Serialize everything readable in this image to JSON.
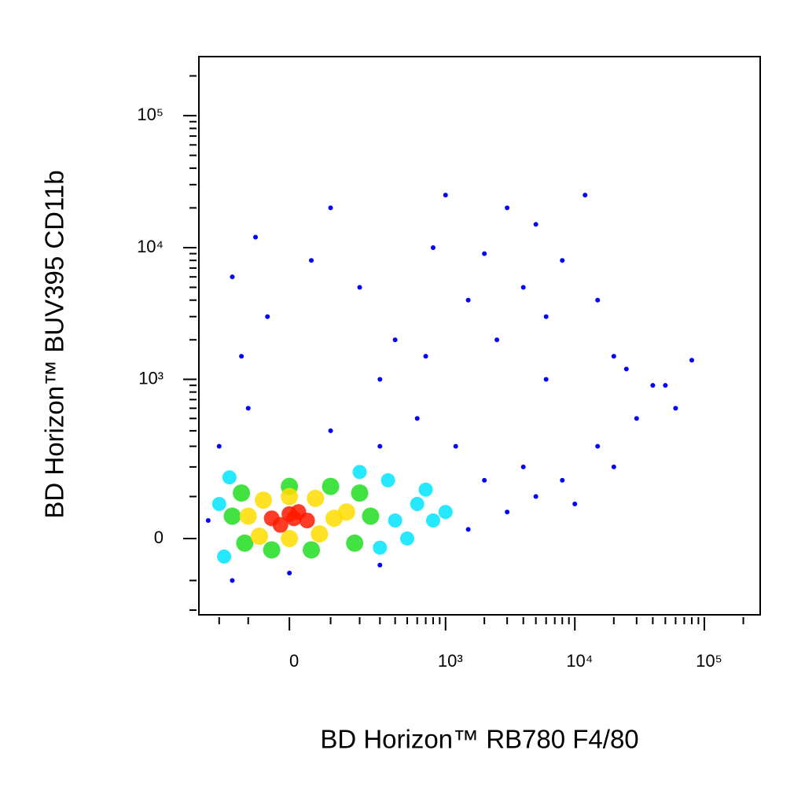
{
  "chart_data": {
    "type": "scatter",
    "xlabel": "BD Horizon™ RB780 F4/80",
    "ylabel": "BD Horizon™ BUV395 CD11b",
    "xscale": "asinh",
    "yscale": "asinh",
    "xlim": [
      -300,
      270000
    ],
    "ylim": [
      -220,
      280000
    ],
    "xticks": [
      0,
      {
        "value": 1000,
        "label": "10³"
      },
      {
        "value": 10000,
        "label": "10⁴"
      },
      {
        "value": 100000,
        "label": "10⁵"
      }
    ],
    "yticks": [
      0,
      {
        "value": 1000,
        "label": "10³"
      },
      {
        "value": 10000,
        "label": "10⁴"
      },
      {
        "value": 100000,
        "label": "10⁵"
      }
    ],
    "xminor_ticks": [
      -200,
      -100,
      100,
      200,
      300,
      400,
      500,
      600,
      700,
      800,
      900,
      2000,
      3000,
      4000,
      5000,
      6000,
      7000,
      8000,
      9000,
      20000,
      30000,
      40000,
      50000,
      60000,
      70000,
      80000,
      90000,
      200000
    ],
    "yminor_ticks": [
      -200,
      -100,
      100,
      200,
      300,
      400,
      500,
      600,
      700,
      800,
      900,
      2000,
      3000,
      4000,
      5000,
      6000,
      7000,
      8000,
      9000,
      20000,
      30000,
      40000,
      50000,
      60000,
      70000,
      80000,
      90000,
      200000
    ],
    "series": [
      {
        "color": "#0000ff",
        "x": [
          -150,
          -250,
          -200,
          0,
          300,
          1500,
          3000,
          5000,
          8000,
          15000,
          30000,
          50000,
          60000,
          20000,
          10000,
          4000,
          2000,
          1200,
          600,
          300,
          100,
          -100,
          -120,
          -50,
          50,
          200,
          400,
          800,
          1500,
          2500,
          4000,
          6000,
          8000,
          5000,
          3000,
          1000,
          100,
          -80,
          300,
          700,
          2000,
          6000,
          12000,
          15000,
          40000,
          25000,
          80000,
          -150,
          20000
        ],
        "y": [
          -100,
          40,
          300,
          -80,
          -60,
          20,
          60,
          100,
          150,
          300,
          500,
          900,
          600,
          200,
          80,
          200,
          150,
          300,
          500,
          300,
          400,
          600,
          1500,
          3000,
          8000,
          5000,
          2000,
          10000,
          4000,
          2000,
          5000,
          3000,
          8000,
          15000,
          20000,
          25000,
          20000,
          12000,
          1000,
          1500,
          9000,
          1000,
          25000,
          4000,
          900,
          1200,
          1400,
          6000,
          1500
        ]
      },
      {
        "color": "#00e5ff",
        "x": [
          -200,
          400,
          600,
          800,
          350,
          500,
          -160,
          300,
          200,
          1000,
          700,
          -180
        ],
        "y": [
          80,
          40,
          80,
          40,
          150,
          0,
          160,
          -20,
          180,
          60,
          120,
          -40
        ]
      },
      {
        "color": "#22dd22",
        "x": [
          -150,
          -120,
          -110,
          250,
          200,
          180,
          0,
          50,
          -40,
          100
        ],
        "y": [
          50,
          110,
          -10,
          50,
          110,
          -10,
          130,
          -25,
          -25,
          130
        ]
      },
      {
        "color": "#ffdd00",
        "x": [
          -100,
          110,
          -60,
          60,
          -70,
          70,
          0,
          0,
          150
        ],
        "y": [
          50,
          45,
          90,
          95,
          5,
          10,
          100,
          0,
          60
        ]
      },
      {
        "color": "#ff1a00",
        "x": [
          -40,
          0,
          40,
          -20,
          20,
          10
        ],
        "y": [
          45,
          55,
          40,
          30,
          60,
          45
        ]
      }
    ]
  }
}
